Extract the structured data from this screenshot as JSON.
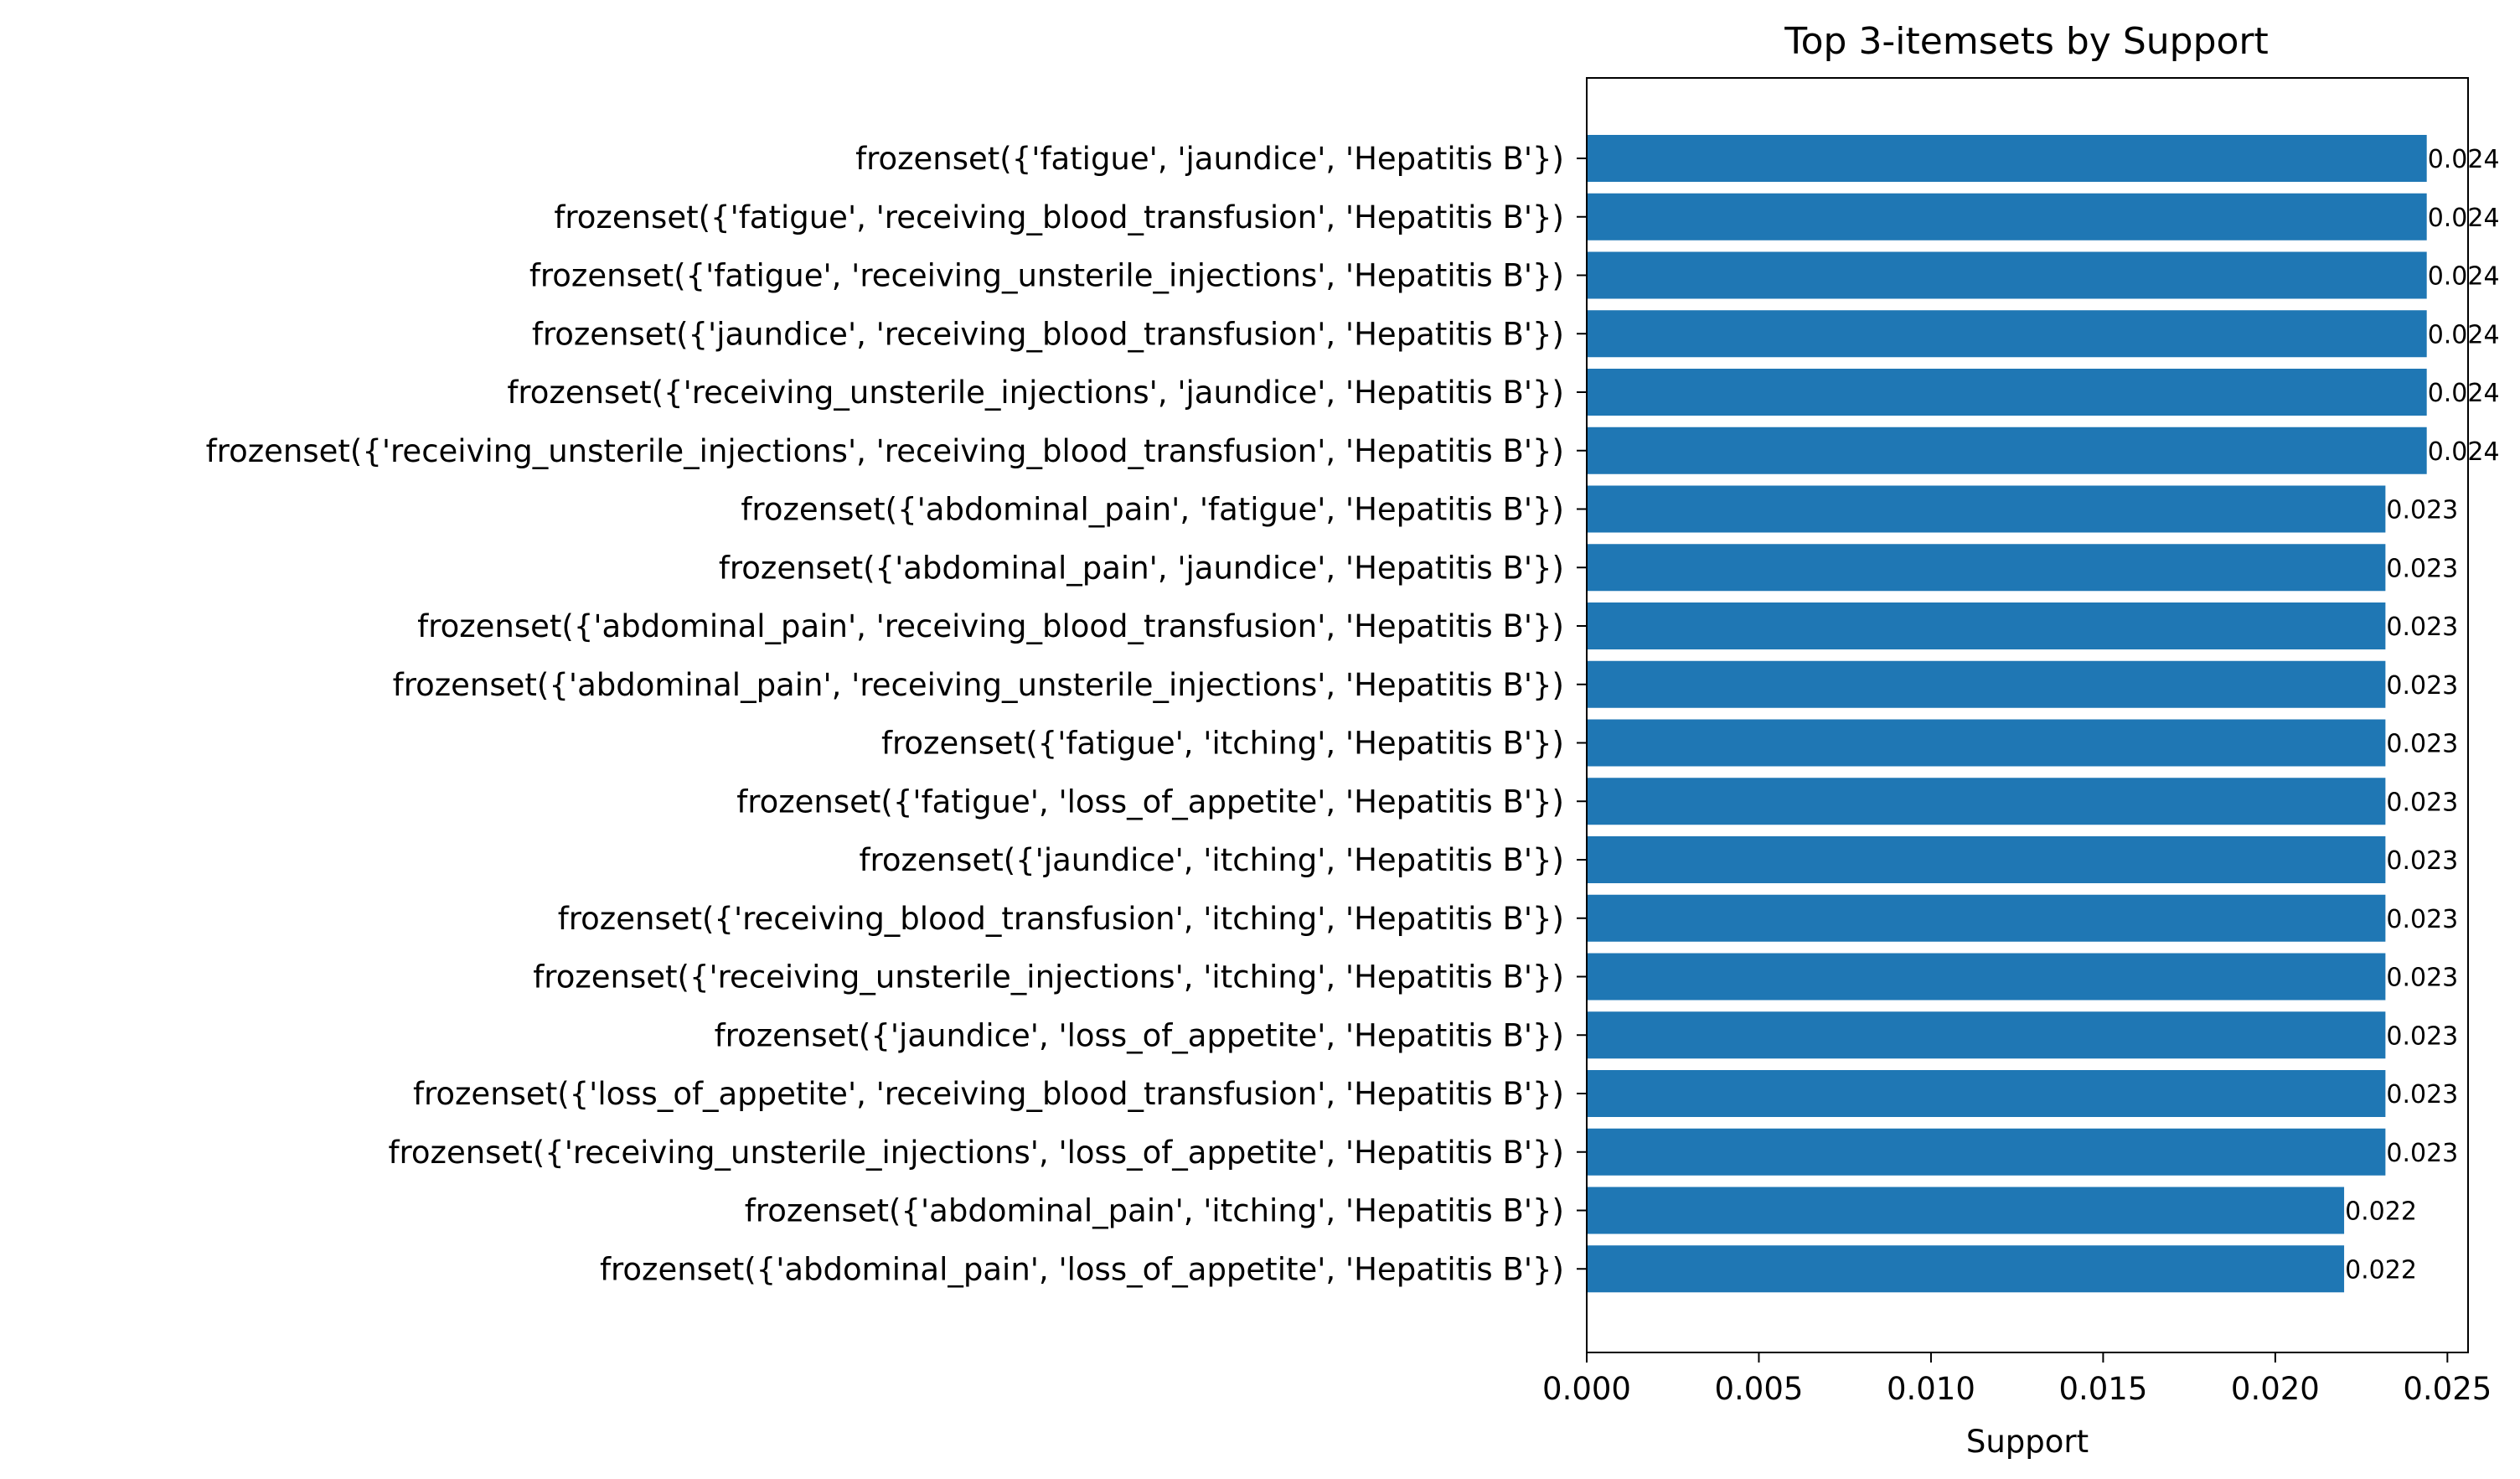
{
  "chart_data": {
    "type": "bar",
    "orientation": "horizontal",
    "title": "Top 3-itemsets by Support",
    "xlabel": "Support",
    "ylabel": "",
    "xlim": [
      0,
      0.0256
    ],
    "xticks": [
      0.0,
      0.005,
      0.01,
      0.015,
      0.02,
      0.025
    ],
    "xtick_labels": [
      "0.000",
      "0.005",
      "0.010",
      "0.015",
      "0.020",
      "0.025"
    ],
    "bar_color": "#1f77b4",
    "grid": false,
    "legend": "none",
    "categories": [
      "frozenset({'fatigue', 'jaundice', 'Hepatitis B'})",
      "frozenset({'fatigue', 'receiving_blood_transfusion', 'Hepatitis B'})",
      "frozenset({'fatigue', 'receiving_unsterile_injections', 'Hepatitis B'})",
      "frozenset({'jaundice', 'receiving_blood_transfusion', 'Hepatitis B'})",
      "frozenset({'receiving_unsterile_injections', 'jaundice', 'Hepatitis B'})",
      "frozenset({'receiving_unsterile_injections', 'receiving_blood_transfusion', 'Hepatitis B'})",
      "frozenset({'abdominal_pain', 'fatigue', 'Hepatitis B'})",
      "frozenset({'abdominal_pain', 'jaundice', 'Hepatitis B'})",
      "frozenset({'abdominal_pain', 'receiving_blood_transfusion', 'Hepatitis B'})",
      "frozenset({'abdominal_pain', 'receiving_unsterile_injections', 'Hepatitis B'})",
      "frozenset({'fatigue', 'itching', 'Hepatitis B'})",
      "frozenset({'fatigue', 'loss_of_appetite', 'Hepatitis B'})",
      "frozenset({'jaundice', 'itching', 'Hepatitis B'})",
      "frozenset({'receiving_blood_transfusion', 'itching', 'Hepatitis B'})",
      "frozenset({'receiving_unsterile_injections', 'itching', 'Hepatitis B'})",
      "frozenset({'jaundice', 'loss_of_appetite', 'Hepatitis B'})",
      "frozenset({'loss_of_appetite', 'receiving_blood_transfusion', 'Hepatitis B'})",
      "frozenset({'receiving_unsterile_injections', 'loss_of_appetite', 'Hepatitis B'})",
      "frozenset({'abdominal_pain', 'itching', 'Hepatitis B'})",
      "frozenset({'abdominal_pain', 'loss_of_appetite', 'Hepatitis B'})"
    ],
    "values": [
      0.0244,
      0.0244,
      0.0244,
      0.0244,
      0.0244,
      0.0244,
      0.0232,
      0.0232,
      0.0232,
      0.0232,
      0.0232,
      0.0232,
      0.0232,
      0.0232,
      0.0232,
      0.0232,
      0.0232,
      0.0232,
      0.022,
      0.022
    ],
    "value_labels": [
      "0.024",
      "0.024",
      "0.024",
      "0.024",
      "0.024",
      "0.024",
      "0.023",
      "0.023",
      "0.023",
      "0.023",
      "0.023",
      "0.023",
      "0.023",
      "0.023",
      "0.023",
      "0.023",
      "0.023",
      "0.023",
      "0.022",
      "0.022"
    ]
  }
}
